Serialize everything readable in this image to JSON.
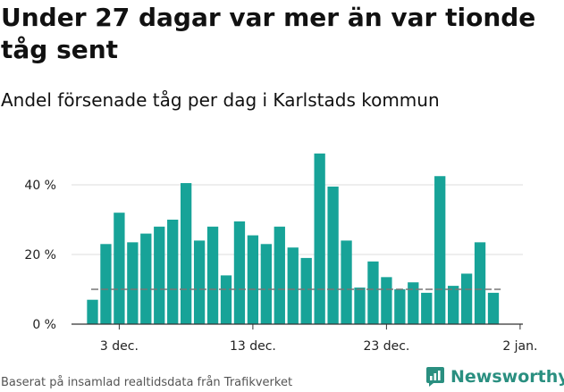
{
  "title": "Under 27 dagar var mer än var tionde tåg sent",
  "subtitle": "Andel försenade tåg per dag i Karlstads kommun",
  "source": "Baserat på insamlad realtidsdata från Trafikverket",
  "brand": "Newsworthy",
  "colors": {
    "bar": "#17a398",
    "reference_line": "#777777",
    "axis": "#333333",
    "brand": "#2a8f80"
  },
  "chart_data": {
    "type": "bar",
    "x": [
      "1 dec.",
      "2 dec.",
      "3 dec.",
      "4 dec.",
      "5 dec.",
      "6 dec.",
      "7 dec.",
      "8 dec.",
      "9 dec.",
      "10 dec.",
      "11 dec.",
      "12 dec.",
      "13 dec.",
      "14 dec.",
      "15 dec.",
      "16 dec.",
      "17 dec.",
      "18 dec.",
      "19 dec.",
      "20 dec.",
      "21 dec.",
      "22 dec.",
      "23 dec.",
      "24 dec.",
      "25 dec.",
      "26 dec.",
      "27 dec.",
      "28 dec.",
      "29 dec.",
      "30 dec.",
      "31 dec."
    ],
    "values": [
      7,
      23,
      32,
      23.5,
      26,
      28,
      30,
      40.5,
      24,
      28,
      14,
      29.5,
      25.5,
      23,
      28,
      22,
      19,
      49,
      39.5,
      24,
      10.5,
      18,
      13.5,
      10,
      12,
      9,
      42.5,
      11,
      14.5,
      23.5,
      9
    ],
    "reference_line": 10,
    "x_tick_labels": [
      "3 dec.",
      "13 dec.",
      "23 dec.",
      "2 jan."
    ],
    "y_tick_labels": [
      "0 %",
      "20 %",
      "40 %"
    ],
    "y_ticks": [
      0,
      20,
      40
    ],
    "ylim": [
      0,
      50
    ],
    "grid": "horizontal"
  }
}
